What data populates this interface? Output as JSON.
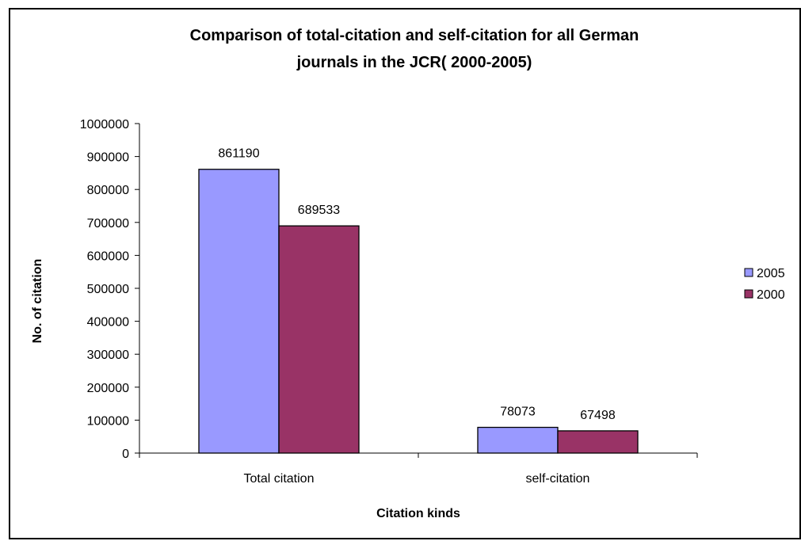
{
  "chart_data": {
    "type": "bar",
    "title_lines": [
      "Comparison of total-citation and self-citation for all German",
      "journals in the JCR( 2000-2005)"
    ],
    "xlabel": "Citation kinds",
    "ylabel": "No. of citation",
    "categories": [
      "Total citation",
      "self-citation"
    ],
    "series": [
      {
        "name": "2005",
        "values": [
          861190,
          78073
        ],
        "color": "#9999ff"
      },
      {
        "name": "2000",
        "values": [
          689533,
          67498
        ],
        "color": "#993366"
      }
    ],
    "ylim": [
      0,
      1000000
    ],
    "yticks": [
      "0",
      "100000",
      "200000",
      "300000",
      "400000",
      "500000",
      "600000",
      "700000",
      "800000",
      "900000",
      "1000000"
    ],
    "data_labels": true,
    "grid": false,
    "legend_position": "right"
  }
}
